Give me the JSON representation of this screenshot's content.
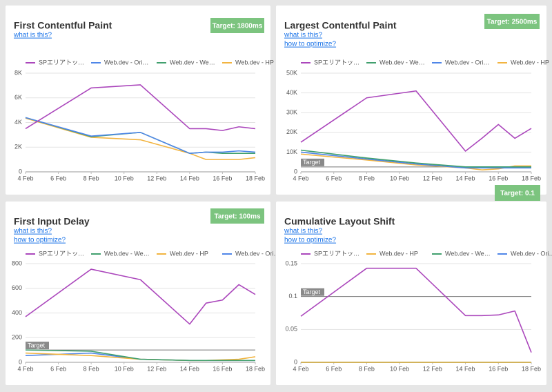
{
  "chart_data": [
    {
      "type": "line",
      "title": "First Contentful Paint",
      "links": [
        "what is this?"
      ],
      "badge": "Target: 1800ms",
      "x": [
        4,
        8,
        11,
        14,
        15,
        16,
        17,
        18
      ],
      "xticks": [
        {
          "value": 4,
          "label": "4 Feb"
        },
        {
          "value": 6,
          "label": "6 Feb"
        },
        {
          "value": 8,
          "label": "8 Feb"
        },
        {
          "value": 10,
          "label": "10 Feb"
        },
        {
          "value": 12,
          "label": "12 Feb"
        },
        {
          "value": 14,
          "label": "14 Feb"
        },
        {
          "value": 16,
          "label": "16 Feb"
        },
        {
          "value": 18,
          "label": "18 Feb"
        }
      ],
      "xlim": [
        4,
        18
      ],
      "ylim": [
        0,
        8000
      ],
      "yticks": [
        0,
        {
          "value": 2000,
          "label": "2K"
        },
        {
          "value": 4000,
          "label": "4K"
        },
        {
          "value": 6000,
          "label": "6K"
        },
        {
          "value": 8000,
          "label": "8K"
        }
      ],
      "grid": true,
      "series": [
        {
          "name": "SPエリアトッ…",
          "color": "#ab47bc",
          "values": [
            3500,
            6800,
            7050,
            3500,
            3500,
            3350,
            3650,
            3500
          ]
        },
        {
          "name": "Web.dev - Ori…",
          "color": "#4f86e8",
          "values": [
            4400,
            2900,
            3200,
            1500,
            1600,
            1600,
            1700,
            1600
          ]
        },
        {
          "name": "Web.dev - We…",
          "color": "#41a06e",
          "values": [
            4400,
            2850,
            3200,
            1500,
            1600,
            1500,
            1500,
            1500
          ]
        },
        {
          "name": "Web.dev - HP",
          "color": "#f2b440",
          "values": [
            4350,
            2800,
            2600,
            1500,
            1000,
            1000,
            1000,
            1150
          ]
        }
      ]
    },
    {
      "type": "line",
      "title": "Largest Contentful Paint",
      "links": [
        "what is this?",
        "how to optimize?"
      ],
      "badge": "Target: 2500ms",
      "x": [
        4,
        8,
        11,
        14,
        15,
        16,
        17,
        18
      ],
      "xticks": [
        {
          "value": 4,
          "label": "4 Feb"
        },
        {
          "value": 6,
          "label": "6 Feb"
        },
        {
          "value": 8,
          "label": "8 Feb"
        },
        {
          "value": 10,
          "label": "10 Feb"
        },
        {
          "value": 12,
          "label": "12 Feb"
        },
        {
          "value": 14,
          "label": "14 Feb"
        },
        {
          "value": 16,
          "label": "16 Feb"
        },
        {
          "value": 18,
          "label": "18 Feb"
        }
      ],
      "xlim": [
        4,
        18
      ],
      "ylim": [
        0,
        50000
      ],
      "yticks": [
        0,
        {
          "value": 10000,
          "label": "10K"
        },
        {
          "value": 20000,
          "label": "20K"
        },
        {
          "value": 30000,
          "label": "30K"
        },
        {
          "value": 40000,
          "label": "40K"
        },
        {
          "value": 50000,
          "label": "50K"
        }
      ],
      "grid": true,
      "target": {
        "value": 2500,
        "label": "Target"
      },
      "series": [
        {
          "name": "SPエリアトッ…",
          "color": "#ab47bc",
          "values": [
            15000,
            37500,
            41000,
            10500,
            17000,
            24000,
            17000,
            22000
          ]
        },
        {
          "name": "Web.dev - We…",
          "color": "#41a06e",
          "values": [
            11000,
            7000,
            4500,
            2500,
            2500,
            2500,
            2500,
            2500
          ]
        },
        {
          "name": "Web.dev - Ori…",
          "color": "#4f86e8",
          "values": [
            10000,
            6500,
            4000,
            2000,
            2000,
            2000,
            2000,
            2000
          ]
        },
        {
          "name": "Web.dev - HP",
          "color": "#f2b440",
          "values": [
            9000,
            6000,
            3500,
            2000,
            1000,
            1500,
            3000,
            3000
          ]
        }
      ]
    },
    {
      "type": "line",
      "title": "First Input Delay",
      "links": [
        "what is this?",
        "how to optimize?"
      ],
      "badge": "Target: 100ms",
      "x": [
        4,
        8,
        11,
        14,
        15,
        16,
        17,
        18
      ],
      "xticks": [
        {
          "value": 4,
          "label": "4 Feb"
        },
        {
          "value": 6,
          "label": "6 Feb"
        },
        {
          "value": 8,
          "label": "8 Feb"
        },
        {
          "value": 10,
          "label": "10 Feb"
        },
        {
          "value": 12,
          "label": "12 Feb"
        },
        {
          "value": 14,
          "label": "14 Feb"
        },
        {
          "value": 16,
          "label": "16 Feb"
        },
        {
          "value": 18,
          "label": "18 Feb"
        }
      ],
      "xlim": [
        4,
        18
      ],
      "ylim": [
        0,
        800
      ],
      "yticks": [
        0,
        200,
        400,
        600,
        800
      ],
      "grid": true,
      "target": {
        "value": 100,
        "label": "Target"
      },
      "series": [
        {
          "name": "SPエリアトッ…",
          "color": "#ab47bc",
          "values": [
            370,
            755,
            670,
            310,
            480,
            505,
            630,
            550
          ]
        },
        {
          "name": "Web.dev - We…",
          "color": "#41a06e",
          "values": [
            100,
            90,
            25,
            15,
            15,
            15,
            15,
            15
          ]
        },
        {
          "name": "Web.dev - HP",
          "color": "#f2b440",
          "values": [
            75,
            55,
            25,
            15,
            15,
            20,
            25,
            45
          ]
        },
        {
          "name": "Web.dev - Ori…",
          "color": "#4f86e8",
          "values": [
            55,
            75,
            25,
            15,
            15,
            15,
            15,
            15
          ]
        }
      ]
    },
    {
      "type": "line",
      "title": "Cumulative Layout Shift",
      "links": [
        "what is this?",
        "how to optimize?"
      ],
      "badge": "Target: 0.1",
      "x": [
        4,
        8,
        11,
        14,
        15,
        16,
        17,
        18
      ],
      "xticks": [
        {
          "value": 4,
          "label": "4 Feb"
        },
        {
          "value": 6,
          "label": "6 Feb"
        },
        {
          "value": 8,
          "label": "8 Feb"
        },
        {
          "value": 10,
          "label": "10 Feb"
        },
        {
          "value": 12,
          "label": "12 Feb"
        },
        {
          "value": 14,
          "label": "14 Feb"
        },
        {
          "value": 16,
          "label": "16 Feb"
        },
        {
          "value": 18,
          "label": "18 Feb"
        }
      ],
      "xlim": [
        4,
        18
      ],
      "ylim": [
        0,
        0.15
      ],
      "yticks": [
        0,
        0.05,
        0.1,
        0.15
      ],
      "grid": true,
      "target": {
        "value": 0.1,
        "label": "Target"
      },
      "series": [
        {
          "name": "SPエリアトッ…",
          "color": "#ab47bc",
          "values": [
            0.07,
            0.143,
            0.143,
            0.071,
            0.071,
            0.072,
            0.078,
            0.015
          ]
        },
        {
          "name": "Web.dev - HP",
          "color": "#f2b440",
          "values": [
            0,
            0,
            0,
            0,
            0,
            0,
            0,
            0
          ]
        },
        {
          "name": "Web.dev - We…",
          "color": "#41a06e",
          "values": [
            0,
            0,
            0,
            0,
            0,
            0,
            0,
            0
          ]
        },
        {
          "name": "Web.dev - Ori…",
          "color": "#4f86e8",
          "values": [
            0,
            0,
            0,
            0,
            0,
            0,
            0,
            0
          ]
        }
      ]
    }
  ]
}
